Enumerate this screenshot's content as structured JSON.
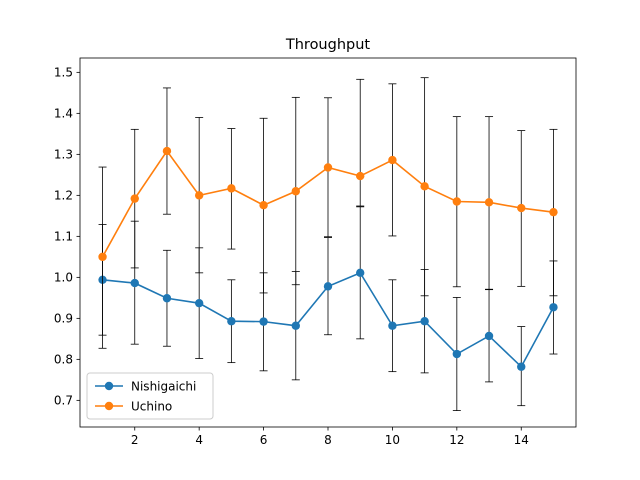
{
  "chart_data": {
    "type": "line",
    "title": "Throughput",
    "xlabel": "",
    "ylabel": "",
    "xlim": [
      0.3,
      15.7
    ],
    "ylim": [
      0.635,
      1.535
    ],
    "xticks": [
      2,
      4,
      6,
      8,
      10,
      12,
      14
    ],
    "yticks": [
      0.7,
      0.8,
      0.9,
      1.0,
      1.1,
      1.2,
      1.3,
      1.4,
      1.5
    ],
    "grid": false,
    "legend_position": "lower-left",
    "x": [
      1,
      2,
      3,
      4,
      5,
      6,
      7,
      8,
      9,
      10,
      11,
      12,
      13,
      14,
      15
    ],
    "series": [
      {
        "name": "Nishigaichi",
        "color": "#1f77b4",
        "values": [
          0.994,
          0.986,
          0.949,
          0.937,
          0.893,
          0.892,
          0.882,
          0.978,
          1.011,
          0.882,
          0.893,
          0.813,
          0.857,
          0.782,
          0.927
        ],
        "err_low": [
          0.827,
          0.837,
          0.832,
          0.802,
          0.792,
          0.772,
          0.75,
          0.86,
          0.85,
          0.77,
          0.767,
          0.675,
          0.745,
          0.687,
          0.813
        ],
        "err_high": [
          1.129,
          1.137,
          1.066,
          1.072,
          0.994,
          1.011,
          1.014,
          1.097,
          1.172,
          0.994,
          1.019,
          0.951,
          0.971,
          0.88,
          1.04
        ]
      },
      {
        "name": "Uchino",
        "color": "#ff7f0e",
        "values": [
          1.05,
          1.192,
          1.308,
          1.2,
          1.217,
          1.176,
          1.21,
          1.268,
          1.247,
          1.286,
          1.222,
          1.185,
          1.183,
          1.169,
          1.159
        ],
        "err_low": [
          0.859,
          1.023,
          1.154,
          1.011,
          1.069,
          0.962,
          0.982,
          1.099,
          1.174,
          1.101,
          0.955,
          0.977,
          0.97,
          0.978,
          0.955
        ],
        "err_high": [
          1.269,
          1.361,
          1.462,
          1.39,
          1.363,
          1.388,
          1.439,
          1.438,
          1.483,
          1.472,
          1.487,
          1.392,
          1.392,
          1.358,
          1.361
        ]
      }
    ]
  }
}
